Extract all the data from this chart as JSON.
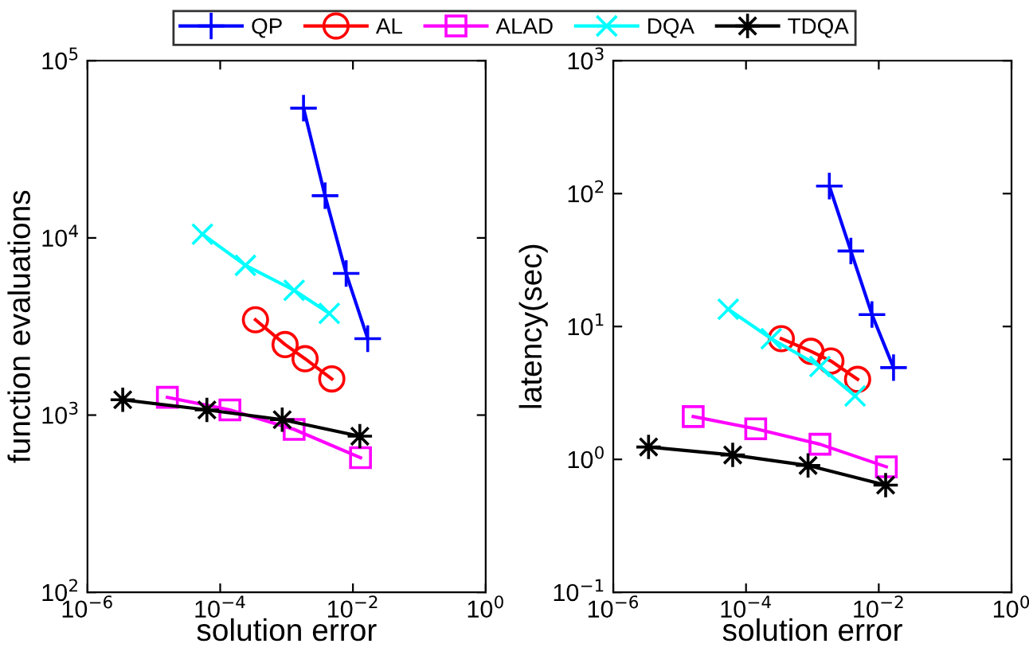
{
  "chart_data": [
    {
      "type": "line",
      "xlabel": "solution error",
      "ylabel": "function evaluations",
      "log": "xy",
      "legend": "top",
      "grid": false,
      "xlim": [
        1e-06,
        1
      ],
      "xticks": [
        {
          "value": 1e-06,
          "label": "10$^{−6}$"
        },
        {
          "value": 0.0001,
          "label": "10$^{−4}$"
        },
        {
          "value": 0.01,
          "label": "10$^{−2}$"
        },
        {
          "value": 1,
          "label": "10$^{0}$"
        }
      ],
      "ylim": [
        100,
        100000
      ],
      "yticks": [
        {
          "value": 100,
          "label": "10$^{2}$"
        },
        {
          "value": 1000,
          "label": "10$^{3}$"
        },
        {
          "value": 10000,
          "label": "10$^{4}$"
        },
        {
          "value": 100000,
          "label": "10$^{5}$"
        }
      ],
      "series": [
        {
          "name": "QP",
          "color": "#0000ff",
          "marker": "plus",
          "x": [
            0.0018,
            0.0038,
            0.0079,
            0.0167
          ],
          "values": [
            54000,
            17300,
            6300,
            2700
          ]
        },
        {
          "name": "AL",
          "color": "#ff0000",
          "marker": "circle",
          "x": [
            0.00034,
            0.00095,
            0.0019,
            0.0048
          ],
          "values": [
            3450,
            2500,
            2080,
            1600
          ]
        },
        {
          "name": "ALAD",
          "color": "#ff00ff",
          "marker": "square",
          "x": [
            1.6e-05,
            0.00014,
            0.0013,
            0.013
          ],
          "values": [
            1260,
            1070,
            830,
            575
          ]
        },
        {
          "name": "DQA",
          "color": "#00ffff",
          "marker": "cross",
          "x": [
            5.4e-05,
            0.00024,
            0.0013,
            0.0044
          ],
          "values": [
            10500,
            7000,
            5060,
            3750
          ]
        },
        {
          "name": "TDQA",
          "color": "#000000",
          "marker": "star",
          "x": [
            3.4e-06,
            6.3e-05,
            0.00086,
            0.0127
          ],
          "values": [
            1220,
            1070,
            942,
            760
          ]
        }
      ]
    },
    {
      "type": "line",
      "xlabel": "solution error",
      "ylabel": "latency(sec)",
      "log": "xy",
      "grid": false,
      "xlim": [
        1e-06,
        1
      ],
      "xticks": [
        {
          "value": 1e-06,
          "label": "10$^{−6}$"
        },
        {
          "value": 0.0001,
          "label": "10$^{−4}$"
        },
        {
          "value": 0.01,
          "label": "10$^{−2}$"
        },
        {
          "value": 1,
          "label": "10$^{0}$"
        }
      ],
      "ylim": [
        0.1,
        1000
      ],
      "yticks": [
        {
          "value": 0.1,
          "label": "10$^{−1}$"
        },
        {
          "value": 1,
          "label": "10$^{0}$"
        },
        {
          "value": 10,
          "label": "10$^{1}$"
        },
        {
          "value": 100,
          "label": "10$^{2}$"
        },
        {
          "value": 1000,
          "label": "10$^{3}$"
        }
      ],
      "series": [
        {
          "color": "#0000ff",
          "marker": "plus",
          "x": [
            0.0018,
            0.0038,
            0.0079,
            0.0167
          ],
          "values": [
            114,
            37,
            12.3,
            4.9
          ]
        },
        {
          "color": "#ff0000",
          "marker": "circle",
          "x": [
            0.00034,
            0.00095,
            0.0019,
            0.0048
          ],
          "values": [
            8.1,
            6.5,
            5.5,
            4.0
          ]
        },
        {
          "color": "#ff00ff",
          "marker": "square",
          "x": [
            1.6e-05,
            0.00014,
            0.0013,
            0.013
          ],
          "values": [
            2.1,
            1.7,
            1.3,
            0.88
          ]
        },
        {
          "color": "#00ffff",
          "marker": "cross",
          "x": [
            5.4e-05,
            0.00024,
            0.0013,
            0.0044
          ],
          "values": [
            13.5,
            8.1,
            5.0,
            3.0
          ]
        },
        {
          "color": "#000000",
          "marker": "star",
          "x": [
            3.4e-06,
            6.3e-05,
            0.00086,
            0.0127
          ],
          "values": [
            1.24,
            1.08,
            0.9,
            0.64
          ]
        }
      ]
    }
  ]
}
